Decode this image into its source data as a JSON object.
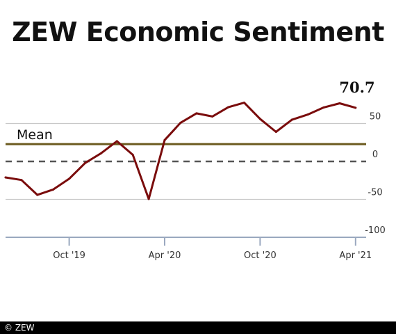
{
  "chart_data": {
    "type": "line",
    "title": "ZEW Economic Sentiment",
    "x": [
      "2019-06",
      "2019-07",
      "2019-08",
      "2019-09",
      "2019-10",
      "2019-11",
      "2019-12",
      "2020-01",
      "2020-02",
      "2020-03",
      "2020-04",
      "2020-05",
      "2020-06",
      "2020-07",
      "2020-08",
      "2020-09",
      "2020-10",
      "2020-11",
      "2020-12",
      "2021-01",
      "2021-02",
      "2021-03",
      "2021-04"
    ],
    "values": [
      -21.1,
      -24.5,
      -44.1,
      -37.0,
      -22.8,
      -2.1,
      10.7,
      26.7,
      8.7,
      -49.5,
      28.2,
      51.0,
      63.4,
      59.3,
      71.5,
      77.4,
      56.1,
      39.0,
      55.0,
      61.8,
      71.2,
      76.6,
      70.7
    ],
    "mean_value": 22.8,
    "mean_label": "Mean",
    "last_value_label": "70.7",
    "y_ticks": [
      50,
      0,
      -50,
      -100
    ],
    "y_tick_labels": [
      "50",
      "0",
      "-50",
      "-100"
    ],
    "x_ticks": [
      "2019-10",
      "2020-04",
      "2020-10",
      "2021-04"
    ],
    "x_tick_labels": [
      "Oct '19",
      "Apr '20",
      "Oct '20",
      "Apr '21"
    ],
    "ylim": [
      -100,
      90
    ],
    "grid": true,
    "colors": {
      "line": "#7a0c0c",
      "mean_line": "#6b5a1e",
      "zero_line": "#555555",
      "grid": "#c8c8c8",
      "axis": "#9aa8bf"
    }
  },
  "footer": {
    "copyright": "© ZEW"
  }
}
